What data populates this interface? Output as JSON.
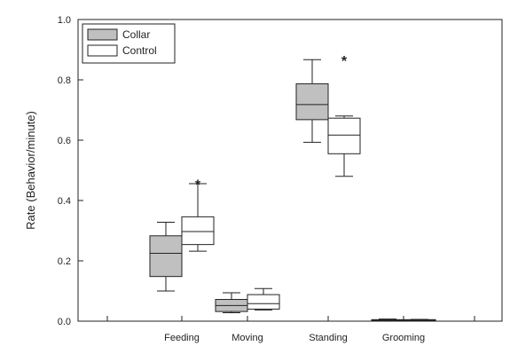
{
  "chart_data": {
    "type": "box",
    "title": "",
    "xlabel": "",
    "ylabel": "Rate (Behavior/minute)",
    "ylim": [
      0,
      1.0
    ],
    "yticks": [
      "0.0",
      "0.2",
      "0.4",
      "0.6",
      "0.8",
      "1.0"
    ],
    "grid": false,
    "legend_position": "top-left",
    "categories": [
      "Feeding",
      "Moving",
      "Standing",
      "Grooming"
    ],
    "series": [
      {
        "name": "Collar",
        "fill": "#c0c0c0",
        "boxes": [
          {
            "min": 0.1,
            "q1": 0.148,
            "median": 0.225,
            "q3": 0.283,
            "max": 0.328
          },
          {
            "min": 0.028,
            "q1": 0.032,
            "median": 0.052,
            "q3": 0.072,
            "max": 0.094
          },
          {
            "min": 0.593,
            "q1": 0.668,
            "median": 0.718,
            "q3": 0.787,
            "max": 0.867
          },
          {
            "min": 0.002,
            "q1": 0.003,
            "median": 0.004,
            "q3": 0.005,
            "max": 0.007
          }
        ]
      },
      {
        "name": "Control",
        "fill": "#ffffff",
        "boxes": [
          {
            "min": 0.232,
            "q1": 0.254,
            "median": 0.297,
            "q3": 0.346,
            "max": 0.456
          },
          {
            "min": 0.037,
            "q1": 0.04,
            "median": 0.058,
            "q3": 0.088,
            "max": 0.108
          },
          {
            "min": 0.48,
            "q1": 0.555,
            "median": 0.617,
            "q3": 0.673,
            "max": 0.68
          },
          {
            "min": 0.002,
            "q1": 0.003,
            "median": 0.004,
            "q3": 0.005,
            "max": 0.006
          }
        ]
      }
    ],
    "annotations": [
      {
        "text": "*",
        "category": "Feeding",
        "series": "Control",
        "y": 0.46
      },
      {
        "text": "*",
        "category": "Standing",
        "series": "Control",
        "y": 0.87
      }
    ]
  }
}
